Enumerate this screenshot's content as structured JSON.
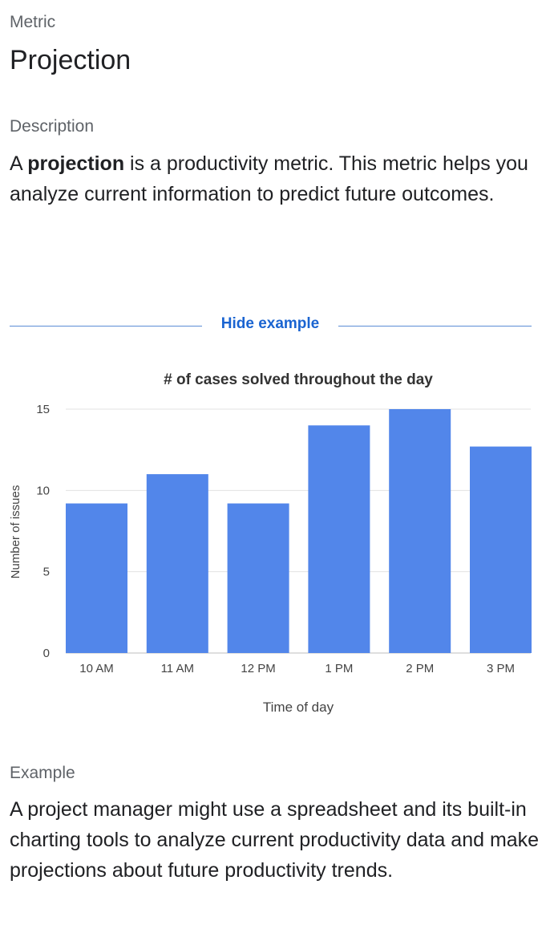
{
  "metric": {
    "label": "Metric",
    "title": "Projection"
  },
  "description": {
    "label": "Description",
    "prefix": "A ",
    "bold": "projection",
    "suffix": " is a productivity metric. This metric helps you analyze current information to predict future outcomes."
  },
  "toggle": {
    "label": "Hide example"
  },
  "chart_data": {
    "type": "bar",
    "title": "# of cases solved throughout the day",
    "xlabel": "Time of day",
    "ylabel": "Number of issues",
    "categories": [
      "10 AM",
      "11 AM",
      "12 PM",
      "1 PM",
      "2 PM",
      "3 PM"
    ],
    "values": [
      9.2,
      11,
      9.2,
      14,
      15,
      12.7
    ],
    "ylim": [
      0,
      15
    ],
    "yticks": [
      0,
      5,
      10,
      15
    ],
    "grid": true,
    "bar_color": "#5286ea"
  },
  "example": {
    "label": "Example",
    "text": "A project manager might use a spreadsheet and its built-in charting tools to analyze current productivity data and make projections about future productivity trends."
  }
}
